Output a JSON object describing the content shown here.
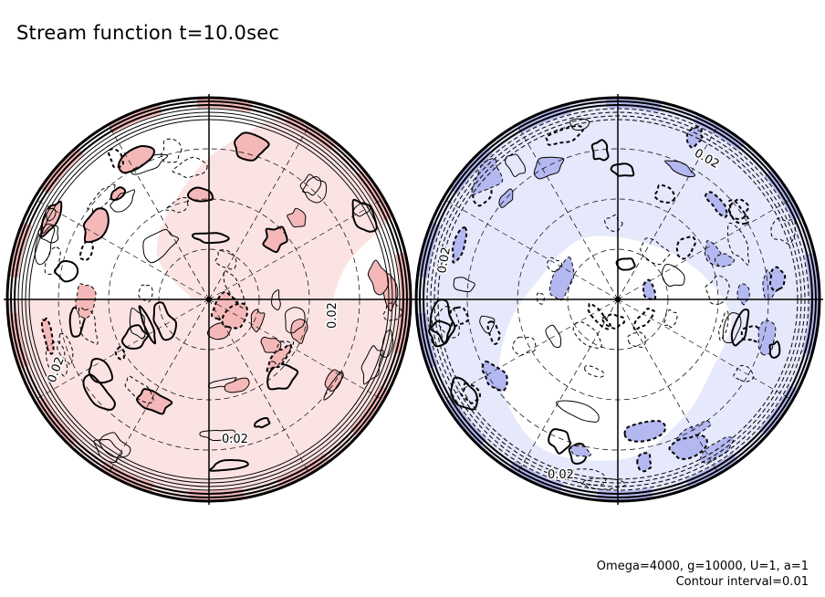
{
  "figure": {
    "title": "Stream function t=10.0sec",
    "footer_params": "Omega=4000, g=10000, U=1, a=1",
    "footer_interval": "Contour interval=0.01"
  },
  "chart_data": {
    "type": "contour",
    "title": "Stream function t=10.0sec",
    "contour_interval": 0.01,
    "parameters": {
      "Omega": 4000,
      "g": 10000,
      "U": 1,
      "a": 1
    },
    "colors": {
      "positive": "#f4b8b8",
      "positive_light": "#fbe3e3",
      "negative": "#b4b8f0",
      "negative_light": "#e6e8fb",
      "outline": "#000000"
    },
    "panels": [
      {
        "name": "left-hemisphere",
        "projection": "orthographic polar",
        "dominant_sign": "positive",
        "contour_labels": [
          "0.02",
          "0.02",
          "0.02"
        ]
      },
      {
        "name": "right-hemisphere",
        "projection": "orthographic polar",
        "dominant_sign": "negative",
        "contour_labels": [
          "0.02",
          "0.02",
          "0.02"
        ]
      }
    ]
  }
}
